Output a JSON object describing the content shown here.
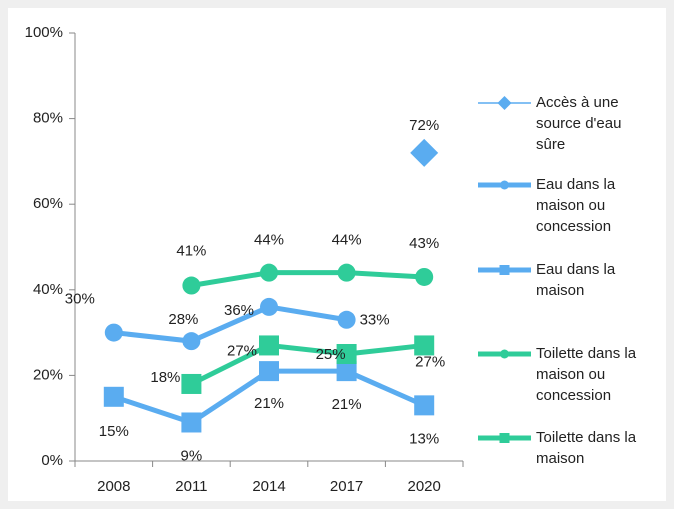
{
  "chart_data": {
    "type": "line",
    "categories": [
      "2008",
      "2011",
      "2014",
      "2017",
      "2020"
    ],
    "ylim": [
      0,
      100
    ],
    "yticks": [
      {
        "value": 0,
        "label": "0%"
      },
      {
        "value": 20,
        "label": "20%"
      },
      {
        "value": 40,
        "label": "40%"
      },
      {
        "value": 60,
        "label": "60%"
      },
      {
        "value": 80,
        "label": "80%"
      },
      {
        "value": 100,
        "label": "100%"
      }
    ],
    "series": [
      {
        "name": "Accès à une source d'eau sûre",
        "color": "#5aacf0",
        "marker": "diamond",
        "values": [
          null,
          null,
          null,
          null,
          72
        ],
        "value_labels": [
          null,
          null,
          null,
          null,
          "72%"
        ]
      },
      {
        "name": "Eau dans la maison ou concession",
        "color": "#5aacf0",
        "marker": "circle",
        "values": [
          30,
          28,
          36,
          33,
          null
        ],
        "value_labels": [
          "30%",
          "28%",
          "36%",
          "33%",
          null
        ]
      },
      {
        "name": "Eau dans la maison",
        "color": "#5aacf0",
        "marker": "square",
        "values": [
          15,
          9,
          21,
          21,
          13
        ],
        "value_labels": [
          "15%",
          "9%",
          "21%",
          "21%",
          "13%"
        ]
      },
      {
        "name": "Toilette dans la maison ou concession",
        "color": "#2fcc99",
        "marker": "circle",
        "values": [
          null,
          41,
          44,
          44,
          43
        ],
        "value_labels": [
          null,
          "41%",
          "44%",
          "44%",
          "43%"
        ]
      },
      {
        "name": "Toilette dans la maison",
        "color": "#2fcc99",
        "marker": "square",
        "values": [
          null,
          18,
          27,
          25,
          27
        ],
        "value_labels": [
          null,
          "18%",
          "27%",
          "25%",
          "27%"
        ]
      }
    ]
  }
}
